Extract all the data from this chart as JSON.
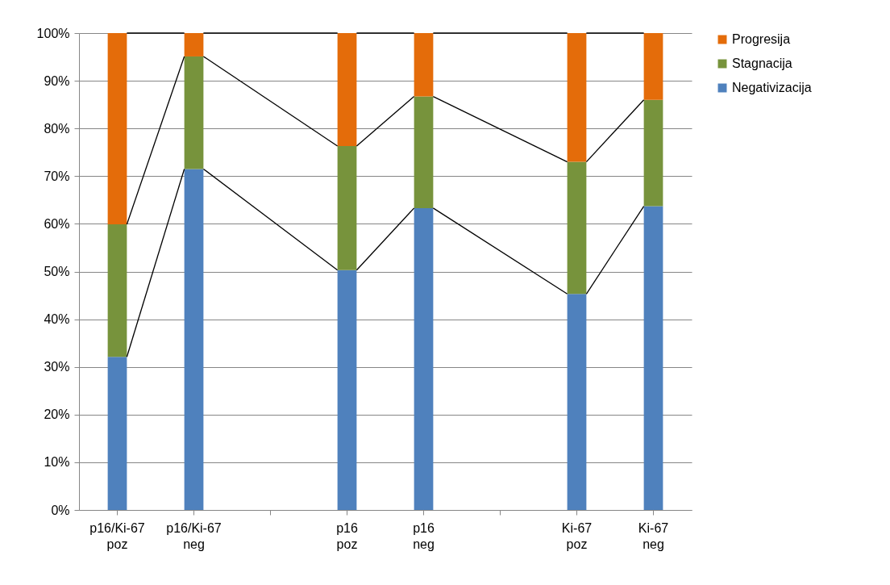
{
  "chart_data": {
    "type": "bar",
    "stacked": true,
    "categories": [
      "p16/Ki-67 poz",
      "p16/Ki-67 neg",
      null,
      "p16 poz",
      "p16 neg",
      null,
      "Ki-67 poz",
      "Ki-67 neg"
    ],
    "series": [
      {
        "name": "Negativizacija",
        "color": "#4f81bd",
        "values": [
          32.1,
          71.5,
          null,
          50.3,
          63.3,
          null,
          45.3,
          63.7
        ]
      },
      {
        "name": "Stagnacija",
        "color": "#77933c",
        "values": [
          27.8,
          23.6,
          null,
          26.0,
          23.4,
          null,
          27.7,
          22.3
        ]
      },
      {
        "name": "Progresija",
        "color": "#e46c0a",
        "values": [
          40.1,
          4.9,
          null,
          23.7,
          13.3,
          null,
          27.0,
          14.0
        ]
      }
    ],
    "ylim": [
      0,
      100
    ],
    "yticks": [
      {
        "value": 0,
        "label": "0%"
      },
      {
        "value": 10,
        "label": "10%"
      },
      {
        "value": 20,
        "label": "20%"
      },
      {
        "value": 30,
        "label": "30%"
      },
      {
        "value": 40,
        "label": "40%"
      },
      {
        "value": 50,
        "label": "50%"
      },
      {
        "value": 60,
        "label": "60%"
      },
      {
        "value": 70,
        "label": "70%"
      },
      {
        "value": 80,
        "label": "80%"
      },
      {
        "value": 90,
        "label": "90%"
      },
      {
        "value": 100,
        "label": "100%"
      }
    ],
    "grid": "y",
    "legend": "right"
  }
}
